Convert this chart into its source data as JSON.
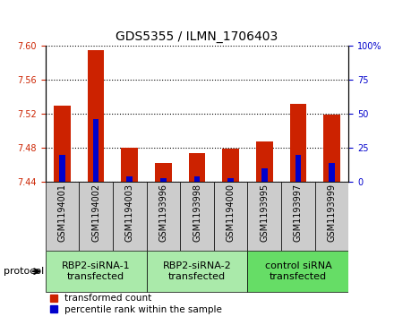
{
  "title": "GDS5355 / ILMN_1706403",
  "samples": [
    "GSM1194001",
    "GSM1194002",
    "GSM1194003",
    "GSM1193996",
    "GSM1193998",
    "GSM1194000",
    "GSM1193995",
    "GSM1193997",
    "GSM1193999"
  ],
  "red_values": [
    7.53,
    7.595,
    7.48,
    7.462,
    7.474,
    7.479,
    7.487,
    7.532,
    7.519
  ],
  "blue_values": [
    20,
    46,
    4,
    3,
    4,
    3,
    10,
    20,
    14
  ],
  "ylim_left": [
    7.44,
    7.6
  ],
  "ylim_right": [
    0,
    100
  ],
  "yticks_left": [
    7.44,
    7.48,
    7.52,
    7.56,
    7.6
  ],
  "yticks_right": [
    0,
    25,
    50,
    75,
    100
  ],
  "groups": [
    {
      "label": "RBP2-siRNA-1\ntransfected",
      "start": 0,
      "end": 3,
      "color": "#aaeaaa"
    },
    {
      "label": "RBP2-siRNA-2\ntransfected",
      "start": 3,
      "end": 6,
      "color": "#aaeaaa"
    },
    {
      "label": "control siRNA\ntransfected",
      "start": 6,
      "end": 9,
      "color": "#66dd66"
    }
  ],
  "bar_width": 0.5,
  "baseline": 7.44,
  "red_color": "#cc2200",
  "blue_color": "#0000cc",
  "sample_bg_color": "#cccccc",
  "legend_red": "transformed count",
  "legend_blue": "percentile rank within the sample",
  "protocol_label": "protocol",
  "left_axis_color": "#cc2200",
  "right_axis_color": "#0000cc",
  "title_fontsize": 10,
  "tick_fontsize": 7,
  "group_fontsize": 8
}
